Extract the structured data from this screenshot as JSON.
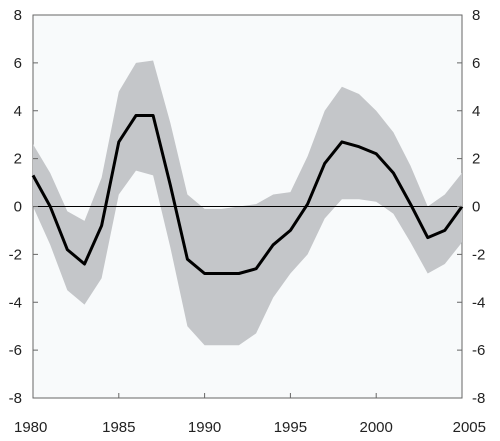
{
  "chart_data": {
    "type": "line",
    "title": "",
    "xlabel": "",
    "ylabel": "",
    "xlim": [
      1980,
      2005
    ],
    "ylim": [
      -8,
      8
    ],
    "x_ticks": [
      "1980",
      "1985",
      "1990",
      "1995",
      "2000",
      "2005"
    ],
    "y_ticks_left": [
      "8",
      "6",
      "4",
      "2",
      "0",
      "-2",
      "-4",
      "-6",
      "-8"
    ],
    "y_ticks_right": [
      "8",
      "6",
      "4",
      "2",
      "0",
      "-2",
      "-4",
      "-6",
      "-8"
    ],
    "grid": false,
    "legend": "none",
    "x": [
      1980,
      1981,
      1982,
      1983,
      1984,
      1985,
      1986,
      1987,
      1988,
      1989,
      1990,
      1991,
      1992,
      1993,
      1994,
      1995,
      1996,
      1997,
      1998,
      1999,
      2000,
      2001,
      2002,
      2003,
      2004,
      2005
    ],
    "series": [
      {
        "values": [
          1.3,
          0.0,
          -1.8,
          -2.4,
          -0.8,
          2.7,
          3.8,
          3.8,
          0.9,
          -2.2,
          -2.8,
          -2.8,
          -2.8,
          -2.6,
          -1.6,
          -1.0,
          0.1,
          1.8,
          2.7,
          2.5,
          2.2,
          1.4,
          0.1,
          -1.3,
          -1.0,
          0.0
        ],
        "color": "#000000"
      }
    ],
    "band": {
      "upper": [
        2.6,
        1.4,
        -0.2,
        -0.6,
        1.2,
        4.8,
        6.0,
        6.1,
        3.5,
        0.5,
        -0.1,
        -0.1,
        0.0,
        0.1,
        0.5,
        0.6,
        2.1,
        4.0,
        5.0,
        4.7,
        4.0,
        3.1,
        1.7,
        0.0,
        0.5,
        1.4
      ],
      "lower": [
        0.0,
        -1.6,
        -3.5,
        -4.1,
        -3.0,
        0.5,
        1.5,
        1.3,
        -1.7,
        -5.0,
        -5.8,
        -5.8,
        -5.8,
        -5.3,
        -3.8,
        -2.8,
        -2.0,
        -0.5,
        0.3,
        0.3,
        0.2,
        -0.3,
        -1.5,
        -2.8,
        -2.4,
        -1.5
      ],
      "color": "#c4c6c9"
    },
    "colors": {
      "plot_background": "#f8fafb",
      "band": "#c4c6c9",
      "line": "#000000",
      "zero_line": "#000000",
      "axis": "#666666"
    }
  }
}
